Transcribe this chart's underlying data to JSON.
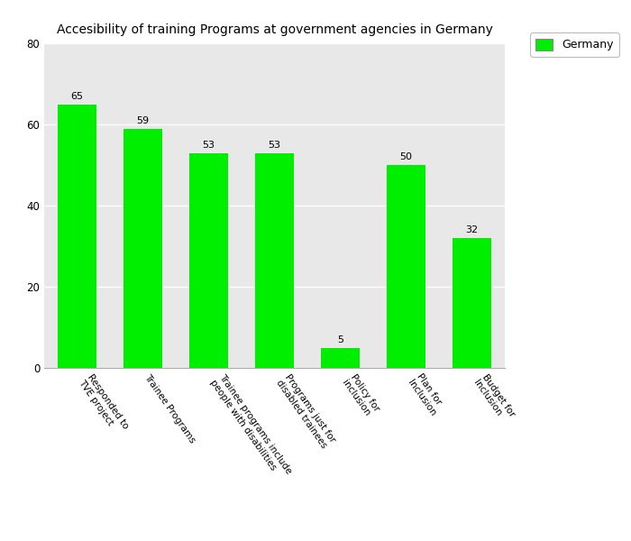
{
  "title": "Accesibility of training Programs at government agencies in Germany",
  "categories": [
    "Responded to\nTVE project",
    "Trainee Programs",
    "Trainee programs include\npeople with disabilities",
    "Programs just for\ndisabled trainees",
    "Policy for\ninclusion",
    "Plan for\nInclusion",
    "Budget for\nInclusion"
  ],
  "values": [
    65,
    59,
    53,
    53,
    5,
    50,
    32
  ],
  "bar_color": "#00EE00",
  "legend_label": "Germany",
  "ylim": [
    0,
    80
  ],
  "yticks": [
    0,
    20,
    40,
    60,
    80
  ],
  "background_color": "#E8E8E8",
  "title_fontsize": 10,
  "label_fontsize": 7.5,
  "value_fontsize": 8
}
